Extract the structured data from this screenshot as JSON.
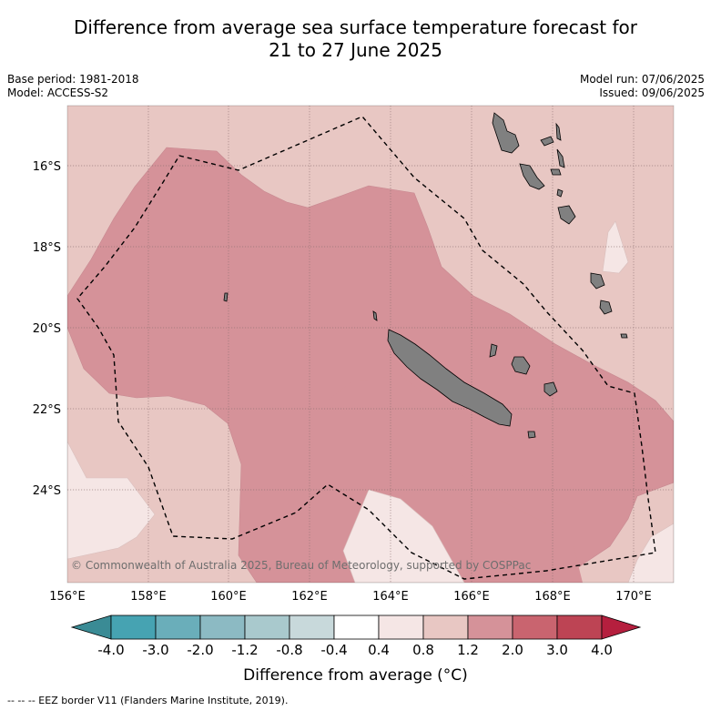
{
  "title": {
    "line1": "Difference from average sea surface temperature forecast for",
    "line2": "21 to 27 June 2025"
  },
  "meta": {
    "base_period": "Base period: 1981-2018",
    "model": "Model: ACCESS-S2",
    "model_run": "Model run: 07/06/2025",
    "issued": "Issued: 09/06/2025"
  },
  "map": {
    "lon_labels": [
      "156°E",
      "158°E",
      "160°E",
      "162°E",
      "164°E",
      "166°E",
      "168°E",
      "170°E"
    ],
    "lat_labels": [
      "16°S",
      "18°S",
      "20°S",
      "22°S",
      "24°S"
    ],
    "copyright": "© Commonwealth of Australia 2025, Bureau of Meteorology, supported by COSPPac",
    "colors": {
      "ocean_0_4_0_8": "#f5e6e5",
      "ocean_0_8_1_2": "#e8c7c3",
      "ocean_1_2_2_0": "#d59299",
      "land": "#808080"
    }
  },
  "colorbar": {
    "title": "Difference from average (°C)",
    "labels": [
      "-4.0",
      "-3.0",
      "-2.0",
      "-1.2",
      "-0.8",
      "-0.4",
      "0.4",
      "0.8",
      "1.2",
      "2.0",
      "3.0",
      "4.0"
    ],
    "colors": [
      "#3a8b95",
      "#46a3b2",
      "#6aaeba",
      "#8cbac3",
      "#a9c9cd",
      "#c8d9db",
      "#ffffff",
      "#f5e6e5",
      "#e8c7c3",
      "#d59299",
      "#c9646f",
      "#bd4454",
      "#b51f3e"
    ]
  },
  "footnote": "--  --  -- EEZ border V11 (Flanders Marine Institute, 2019)."
}
